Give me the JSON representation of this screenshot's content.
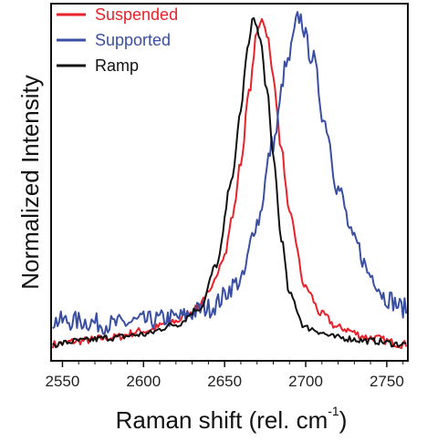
{
  "chart_data": {
    "type": "line",
    "xlabel": "Raman shift (rel. cm",
    "xlabel_sup": "-1",
    "xlabel_close": ")",
    "ylabel": "Normalized Intensity",
    "xlim": [
      2543,
      2763
    ],
    "ylim": [
      -0.04,
      1.04
    ],
    "x_ticks": [
      "2550",
      "2600",
      "2650",
      "2700",
      "2750"
    ],
    "grid": false,
    "legend_position": "top-left",
    "series": [
      {
        "name": "Suspended",
        "color": "#e8212a",
        "center": 2673,
        "width": 12.5,
        "baseline": 0.0,
        "noise": 0.012,
        "x": [
          2545,
          2560,
          2580,
          2600,
          2620,
          2630,
          2640,
          2650,
          2655,
          2660,
          2665,
          2670,
          2673,
          2676,
          2680,
          2685,
          2690,
          2700,
          2710,
          2720,
          2740,
          2760
        ],
        "y": [
          0.01,
          0.02,
          0.03,
          0.05,
          0.08,
          0.11,
          0.16,
          0.28,
          0.4,
          0.56,
          0.77,
          0.95,
          1.0,
          0.95,
          0.82,
          0.6,
          0.4,
          0.18,
          0.1,
          0.06,
          0.03,
          0.01
        ]
      },
      {
        "name": "Supported",
        "color": "#3a4fa2",
        "center": 2696,
        "width": 14.5,
        "baseline": 0.08,
        "noise": 0.03,
        "x": [
          2545,
          2560,
          2580,
          2600,
          2620,
          2640,
          2660,
          2670,
          2680,
          2688,
          2696,
          2704,
          2712,
          2720,
          2730,
          2740,
          2750,
          2760
        ],
        "y": [
          0.08,
          0.08,
          0.07,
          0.08,
          0.09,
          0.12,
          0.2,
          0.38,
          0.62,
          0.85,
          1.0,
          0.88,
          0.68,
          0.48,
          0.32,
          0.22,
          0.15,
          0.12
        ]
      },
      {
        "name": "Ramp",
        "color": "#111111",
        "center": 2668,
        "width": 12.0,
        "baseline": 0.0,
        "noise": 0.01,
        "x": [
          2545,
          2560,
          2580,
          2600,
          2620,
          2635,
          2645,
          2655,
          2660,
          2664,
          2668,
          2672,
          2676,
          2680,
          2685,
          2690,
          2700,
          2720,
          2740,
          2760
        ],
        "y": [
          0.01,
          0.02,
          0.03,
          0.04,
          0.07,
          0.12,
          0.25,
          0.52,
          0.72,
          0.9,
          1.0,
          0.93,
          0.78,
          0.58,
          0.33,
          0.16,
          0.06,
          0.03,
          0.02,
          0.01
        ]
      }
    ]
  }
}
